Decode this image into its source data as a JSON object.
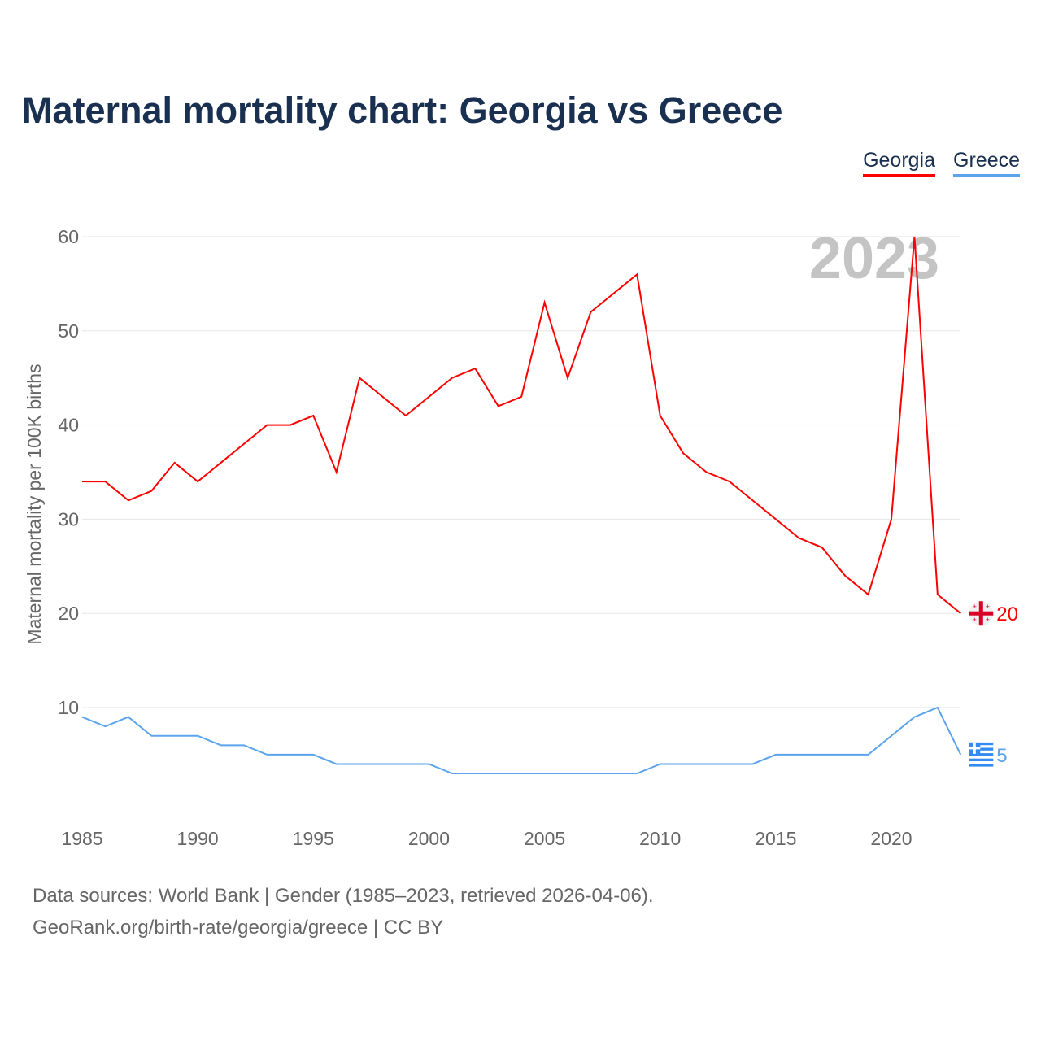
{
  "title": "Maternal mortality chart: Georgia vs Greece",
  "legend": [
    {
      "label": "Georgia",
      "color": "#ff0000"
    },
    {
      "label": "Greece",
      "color": "#5ba4ec"
    }
  ],
  "year_watermark": "2023",
  "footer": {
    "line1": "Data sources: World Bank | Gender (1985–2023, retrieved 2026-04-06).",
    "line2": "GeoRank.org/birth-rate/georgia/greece | CC BY"
  },
  "chart_data": {
    "type": "line",
    "title": "Maternal mortality chart: Georgia vs Greece",
    "xlabel": "",
    "ylabel": "Maternal mortality per 100K births",
    "xlim": [
      1985,
      2023
    ],
    "ylim": [
      0,
      60
    ],
    "yticks": [
      10,
      20,
      30,
      40,
      50,
      60
    ],
    "xticks": [
      1985,
      1990,
      1995,
      2000,
      2005,
      2010,
      2015,
      2020
    ],
    "grid": true,
    "legend_position": "top-right",
    "x": [
      1985,
      1986,
      1987,
      1988,
      1989,
      1990,
      1991,
      1992,
      1993,
      1994,
      1995,
      1996,
      1997,
      1998,
      1999,
      2000,
      2001,
      2002,
      2003,
      2004,
      2005,
      2006,
      2007,
      2008,
      2009,
      2010,
      2011,
      2012,
      2013,
      2014,
      2015,
      2016,
      2017,
      2018,
      2019,
      2020,
      2021,
      2022,
      2023
    ],
    "series": [
      {
        "name": "Georgia",
        "color": "#ff0000",
        "end_label": "20",
        "values": [
          34,
          34,
          32,
          33,
          36,
          34,
          36,
          38,
          40,
          40,
          41,
          35,
          45,
          43,
          41,
          43,
          45,
          46,
          42,
          43,
          53,
          45,
          52,
          54,
          56,
          41,
          37,
          35,
          34,
          32,
          30,
          28,
          27,
          24,
          22,
          30,
          60,
          22,
          20
        ]
      },
      {
        "name": "Greece",
        "color": "#5ba4ec",
        "end_label": "5",
        "values": [
          9,
          8,
          9,
          7,
          7,
          7,
          6,
          6,
          5,
          5,
          5,
          4,
          4,
          4,
          4,
          4,
          3,
          3,
          3,
          3,
          3,
          3,
          3,
          3,
          3,
          4,
          4,
          4,
          4,
          4,
          5,
          5,
          5,
          5,
          5,
          7,
          9,
          10,
          5
        ]
      }
    ]
  }
}
